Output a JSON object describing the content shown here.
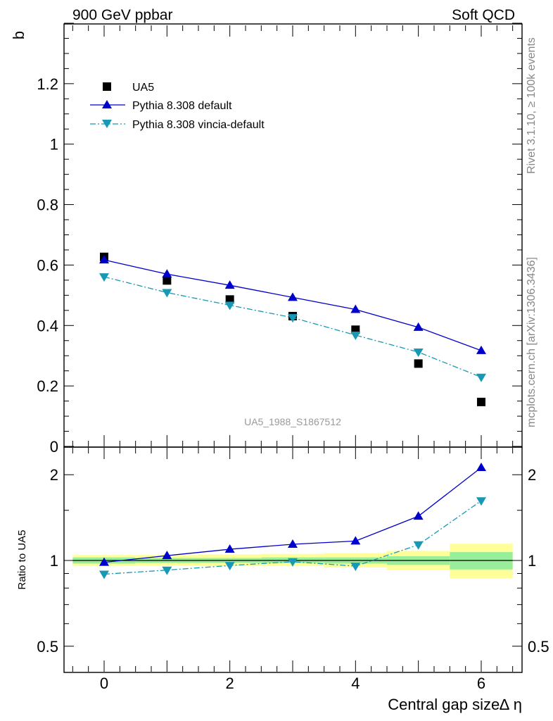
{
  "header": {
    "left": "900 GeV ppbar",
    "right": "Soft QCD"
  },
  "side_labels": {
    "rivet": "Rivet 3.1.10, ≥ 100k events",
    "mcplots": "mcplots.cern.ch [arXiv:1306.3436]"
  },
  "chart_data": [
    {
      "type": "scatter",
      "panel": "main",
      "ylabel": "b",
      "ylim": [
        0,
        1.4
      ],
      "xlim": [
        -0.65,
        6.65
      ],
      "yticks": [
        "0",
        "0.2",
        "0.4",
        "0.6",
        "0.8",
        "1",
        "1.2"
      ],
      "annotation": "UA5_1988_S1867512",
      "legend_position": "top-left",
      "series": [
        {
          "name": "UA5",
          "style": "data",
          "color": "#000000",
          "x": [
            0,
            1,
            2,
            3,
            4,
            5,
            6
          ],
          "y": [
            0.627,
            0.549,
            0.486,
            0.431,
            0.386,
            0.274,
            0.147
          ]
        },
        {
          "name": "Pythia 8.308 default",
          "style": "solid",
          "marker": "triangle-up",
          "color": "#0000cc",
          "x": [
            0,
            1,
            2,
            3,
            4,
            5,
            6
          ],
          "y": [
            0.617,
            0.57,
            0.533,
            0.493,
            0.453,
            0.394,
            0.317
          ]
        },
        {
          "name": "Pythia 8.308 vincia-default",
          "style": "dashdot",
          "marker": "triangle-down",
          "color": "#1799b5",
          "x": [
            0,
            1,
            2,
            3,
            4,
            5,
            6
          ],
          "y": [
            0.561,
            0.509,
            0.467,
            0.426,
            0.368,
            0.312,
            0.229
          ]
        }
      ]
    },
    {
      "type": "scatter",
      "panel": "ratio",
      "ylabel": "Ratio to UA5",
      "xlabel": "Central gap size∆ η",
      "xticks": [
        "0",
        "2",
        "4",
        "6"
      ],
      "yticks": [
        "0.5",
        "1",
        "2"
      ],
      "ylim": [
        0.4,
        2.4
      ],
      "yscale": "log",
      "reference": 1,
      "bands": [
        {
          "x0": -0.5,
          "x1": 0.5,
          "green": [
            0.975,
            1.025
          ],
          "yellow": [
            0.955,
            1.045
          ]
        },
        {
          "x0": 0.5,
          "x1": 1.5,
          "green": [
            0.98,
            1.02
          ],
          "yellow": [
            0.96,
            1.045
          ]
        },
        {
          "x0": 1.5,
          "x1": 2.5,
          "green": [
            0.98,
            1.02
          ],
          "yellow": [
            0.955,
            1.05
          ]
        },
        {
          "x0": 2.5,
          "x1": 3.5,
          "green": [
            0.98,
            1.025
          ],
          "yellow": [
            0.955,
            1.055
          ]
        },
        {
          "x0": 3.5,
          "x1": 4.5,
          "green": [
            0.975,
            1.025
          ],
          "yellow": [
            0.945,
            1.06
          ]
        },
        {
          "x0": 4.5,
          "x1": 5.5,
          "green": [
            0.965,
            1.035
          ],
          "yellow": [
            0.925,
            1.08
          ]
        },
        {
          "x0": 5.5,
          "x1": 6.5,
          "green": [
            0.93,
            1.07
          ],
          "yellow": [
            0.865,
            1.145
          ]
        }
      ],
      "series": [
        {
          "name": "Pythia 8.308 default",
          "style": "solid",
          "marker": "triangle-up",
          "color": "#0000cc",
          "x": [
            0,
            1,
            2,
            3,
            4,
            5,
            6
          ],
          "y": [
            0.985,
            1.04,
            1.095,
            1.14,
            1.17,
            1.43,
            2.12
          ]
        },
        {
          "name": "Pythia 8.308 vincia-default",
          "style": "dashdot",
          "marker": "triangle-down",
          "color": "#1799b5",
          "x": [
            0,
            1,
            2,
            3,
            4,
            5,
            6
          ],
          "y": [
            0.895,
            0.925,
            0.96,
            0.99,
            0.955,
            1.135,
            1.62
          ]
        }
      ]
    }
  ]
}
